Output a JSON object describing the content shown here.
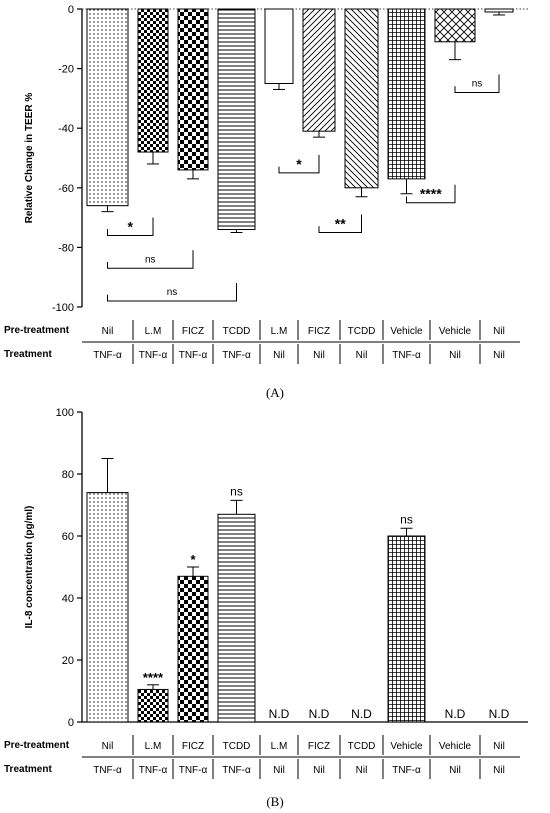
{
  "chart_data": [
    {
      "type": "bar",
      "panel_label": "(A)",
      "ylabel": "Relative Change in TEER %",
      "ylim": [
        -100,
        0
      ],
      "yticks": [
        0,
        -20,
        -40,
        -60,
        -80,
        -100
      ],
      "pretreatment_label": "Pre-treatment",
      "treatment_label": "Treatment",
      "pretreatment": [
        "Nil",
        "L.M",
        "FICZ",
        "TCDD",
        "L.M",
        "FICZ",
        "TCDD",
        "Vehicle",
        "Vehicle",
        "Nil"
      ],
      "treatment": [
        "TNF-α",
        "TNF-α",
        "TNF-α",
        "TNF-α",
        "Nil",
        "Nil",
        "Nil",
        "TNF-α",
        "Nil",
        "Nil"
      ],
      "values": [
        -66,
        -48,
        -54,
        -74,
        -25,
        -41,
        -60,
        -57,
        -11,
        -1
      ],
      "errors": [
        2,
        4,
        3,
        1,
        2,
        2,
        3,
        5,
        6,
        1
      ],
      "patterns": [
        "dots",
        "checker",
        "checker-large",
        "hlines",
        "white",
        "diag-right",
        "diag-left",
        "grid",
        "diamond",
        "white"
      ],
      "comparisons": [
        {
          "from": 0,
          "to": 1,
          "label": "*",
          "y": -76
        },
        {
          "from": 0,
          "to": 2,
          "label": "ns",
          "y": -87
        },
        {
          "from": 0,
          "to": 3,
          "label": "ns",
          "y": -98
        },
        {
          "from": 4,
          "to": 5,
          "label": "*",
          "y": -55
        },
        {
          "from": 5,
          "to": 6,
          "label": "**",
          "y": -75
        },
        {
          "from": 7,
          "to": 8,
          "label": "****",
          "y": -65
        },
        {
          "from": 8,
          "to": 9,
          "label": "ns",
          "y": -28
        }
      ]
    },
    {
      "type": "bar",
      "panel_label": "(B)",
      "ylabel": "IL-8 concentration (pg/ml)",
      "ylim": [
        0,
        100
      ],
      "yticks": [
        0,
        20,
        40,
        60,
        80,
        100
      ],
      "pretreatment_label": "Pre-treatment",
      "treatment_label": "Treatment",
      "pretreatment": [
        "Nil",
        "L.M",
        "FICZ",
        "TCDD",
        "L.M",
        "FICZ",
        "TCDD",
        "Vehicle",
        "Vehicle",
        "Nil"
      ],
      "treatment": [
        "TNF-α",
        "TNF-α",
        "TNF-α",
        "TNF-α",
        "Nil",
        "Nil",
        "Nil",
        "TNF-α",
        "Nil",
        "Nil"
      ],
      "values": [
        74,
        10.5,
        47,
        67,
        null,
        null,
        null,
        60,
        null,
        null
      ],
      "errors": [
        11,
        1.5,
        3,
        4.5,
        null,
        null,
        null,
        2.5,
        null,
        null
      ],
      "annotations": [
        "",
        "****",
        "*",
        "ns",
        "N.D",
        "N.D",
        "N.D",
        "ns",
        "N.D",
        "N.D"
      ],
      "patterns": [
        "dots",
        "checker",
        "checker-large",
        "hlines",
        "white",
        "white",
        "white",
        "grid",
        "white",
        "white"
      ]
    }
  ]
}
